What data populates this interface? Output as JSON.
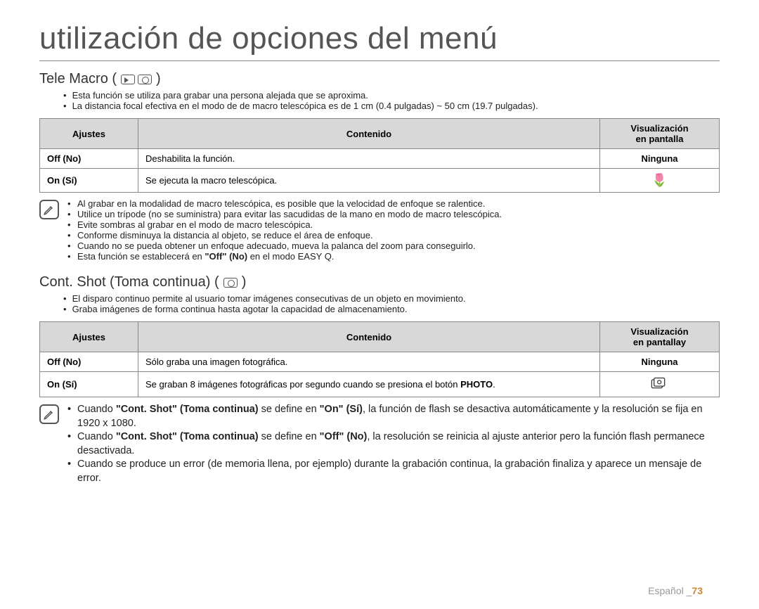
{
  "page": {
    "title": "utilización de opciones del menú",
    "footer_lang": "Español _",
    "footer_page": "73"
  },
  "section1": {
    "title": "Tele Macro (",
    "title_close": ")",
    "intro": [
      "Esta función se utiliza para grabar una persona alejada que se aproxima.",
      "La distancia focal efectiva en el modo de de macro telescópica es de 1 cm (0.4 pulgadas) ~ 50 cm (19.7 pulgadas)."
    ],
    "table": {
      "headers": [
        "Ajustes",
        "Contenido",
        "Visualización\nen pantalla"
      ],
      "rows": [
        {
          "c0": "Off (No)",
          "c1": "Deshabilita la función.",
          "c2": "Ninguna",
          "icon": null
        },
        {
          "c0": "On (Sí)",
          "c1": "Se ejecuta la macro telescópica.",
          "c2": "",
          "icon": "flower"
        }
      ]
    },
    "notes": [
      "Al grabar en la modalidad de macro telescópica, es posible que la velocidad de enfoque se ralentice.",
      "Utilice un trípode (no se suministra) para evitar las sacudidas de la mano en modo de macro telescópica.",
      "Evite sombras al grabar en el modo de macro telescópica.",
      "Conforme disminuya la distancia al objeto, se reduce el área de enfoque.",
      "Cuando no se pueda obtener un enfoque adecuado, mueva la palanca del zoom para conseguirlo."
    ],
    "note_last_pre": "Esta función se establecerá en ",
    "note_last_bold": "\"Off\" (No)",
    "note_last_post": " en el modo EASY Q."
  },
  "section2": {
    "title": "Cont. Shot (Toma continua) (",
    "title_close": ")",
    "intro": [
      "El disparo continuo permite al usuario tomar imágenes consecutivas de un objeto en movimiento.",
      "Graba imágenes de forma continua hasta agotar la capacidad de almacenamiento."
    ],
    "table": {
      "headers": [
        "Ajustes",
        "Contenido",
        "Visualización\nen pantallay"
      ],
      "rows": [
        {
          "c0": "Off (No)",
          "c1": "Sólo graba una imagen fotográfica.",
          "c2": "Ninguna",
          "icon": null
        },
        {
          "c0": "On (Sí)",
          "c1_pre": "Se graban 8 imágenes fotográficas por segundo cuando se presiona el botón ",
          "c1_bold": "PHOTO",
          "c1_post": ".",
          "c2": "",
          "icon": "burst"
        }
      ]
    },
    "notes_html": [
      {
        "parts": [
          {
            "t": "Cuando "
          },
          {
            "b": "\"Cont. Shot\" (Toma continua)"
          },
          {
            "t": " se define en "
          },
          {
            "b": "\"On\" (Sí)"
          },
          {
            "t": ", la función de flash se desactiva automáticamente y la resolución se fija en 1920 x 1080."
          }
        ]
      },
      {
        "parts": [
          {
            "t": "Cuando "
          },
          {
            "b": "\"Cont. Shot\" (Toma continua)"
          },
          {
            "t": " se define en "
          },
          {
            "b": "\"Off\" (No)"
          },
          {
            "t": ", la resolución se reinicia al ajuste anterior pero la función flash permanece desactivada."
          }
        ]
      },
      {
        "parts": [
          {
            "t": "Cuando se produce un error (de memoria llena, por ejemplo) durante la grabación continua, la grabación finaliza y aparece un mensaje de error."
          }
        ]
      }
    ]
  }
}
